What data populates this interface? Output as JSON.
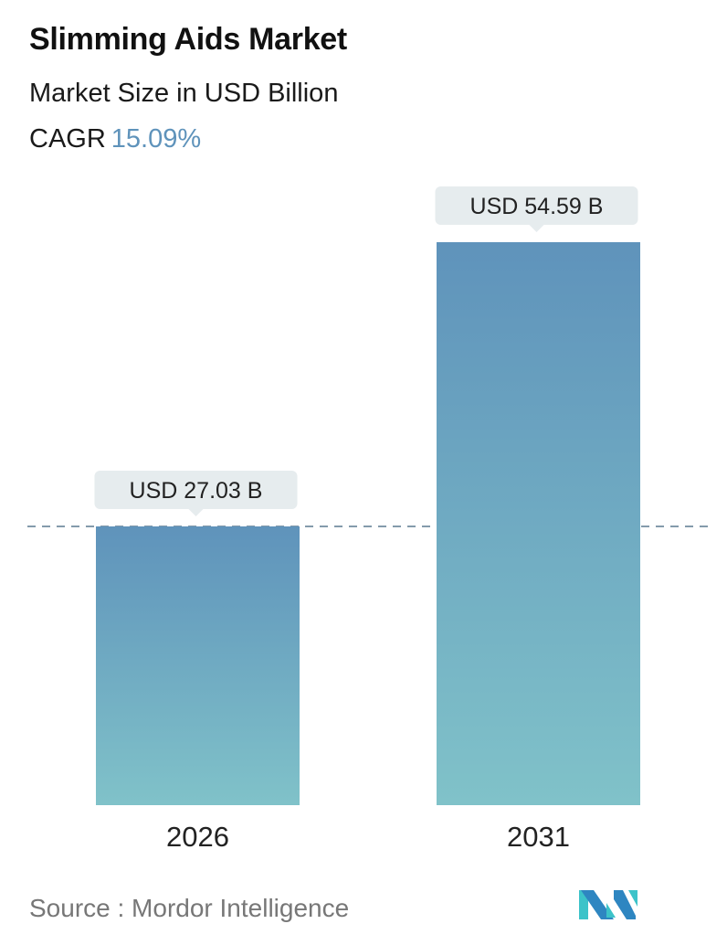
{
  "title": "Slimming Aids Market",
  "subtitle": "Market Size in USD Billion",
  "cagr": {
    "label": "CAGR",
    "value": "15.09%"
  },
  "source": "Source :  Mordor Intelligence",
  "colors": {
    "bar_top": "#5f93bb",
    "bar_bottom": "#80c2c9",
    "cagr": "#5f93bb",
    "label_box": "#e6ecee",
    "dashed_line": "#5b7a90"
  },
  "logo": {
    "name": "mordor-intelligence-logo",
    "text": "Mordor Intelligence"
  },
  "chart_data": {
    "type": "bar",
    "categories": [
      "2026",
      "2031"
    ],
    "values": [
      27.03,
      54.59
    ],
    "data_labels": [
      "USD 27.03 B",
      "USD 54.59 B"
    ],
    "title": "Slimming Aids Market",
    "ylabel": "Market Size in USD Billion",
    "reference_line": {
      "value": 27.03,
      "style": "dashed"
    },
    "grid": false
  }
}
